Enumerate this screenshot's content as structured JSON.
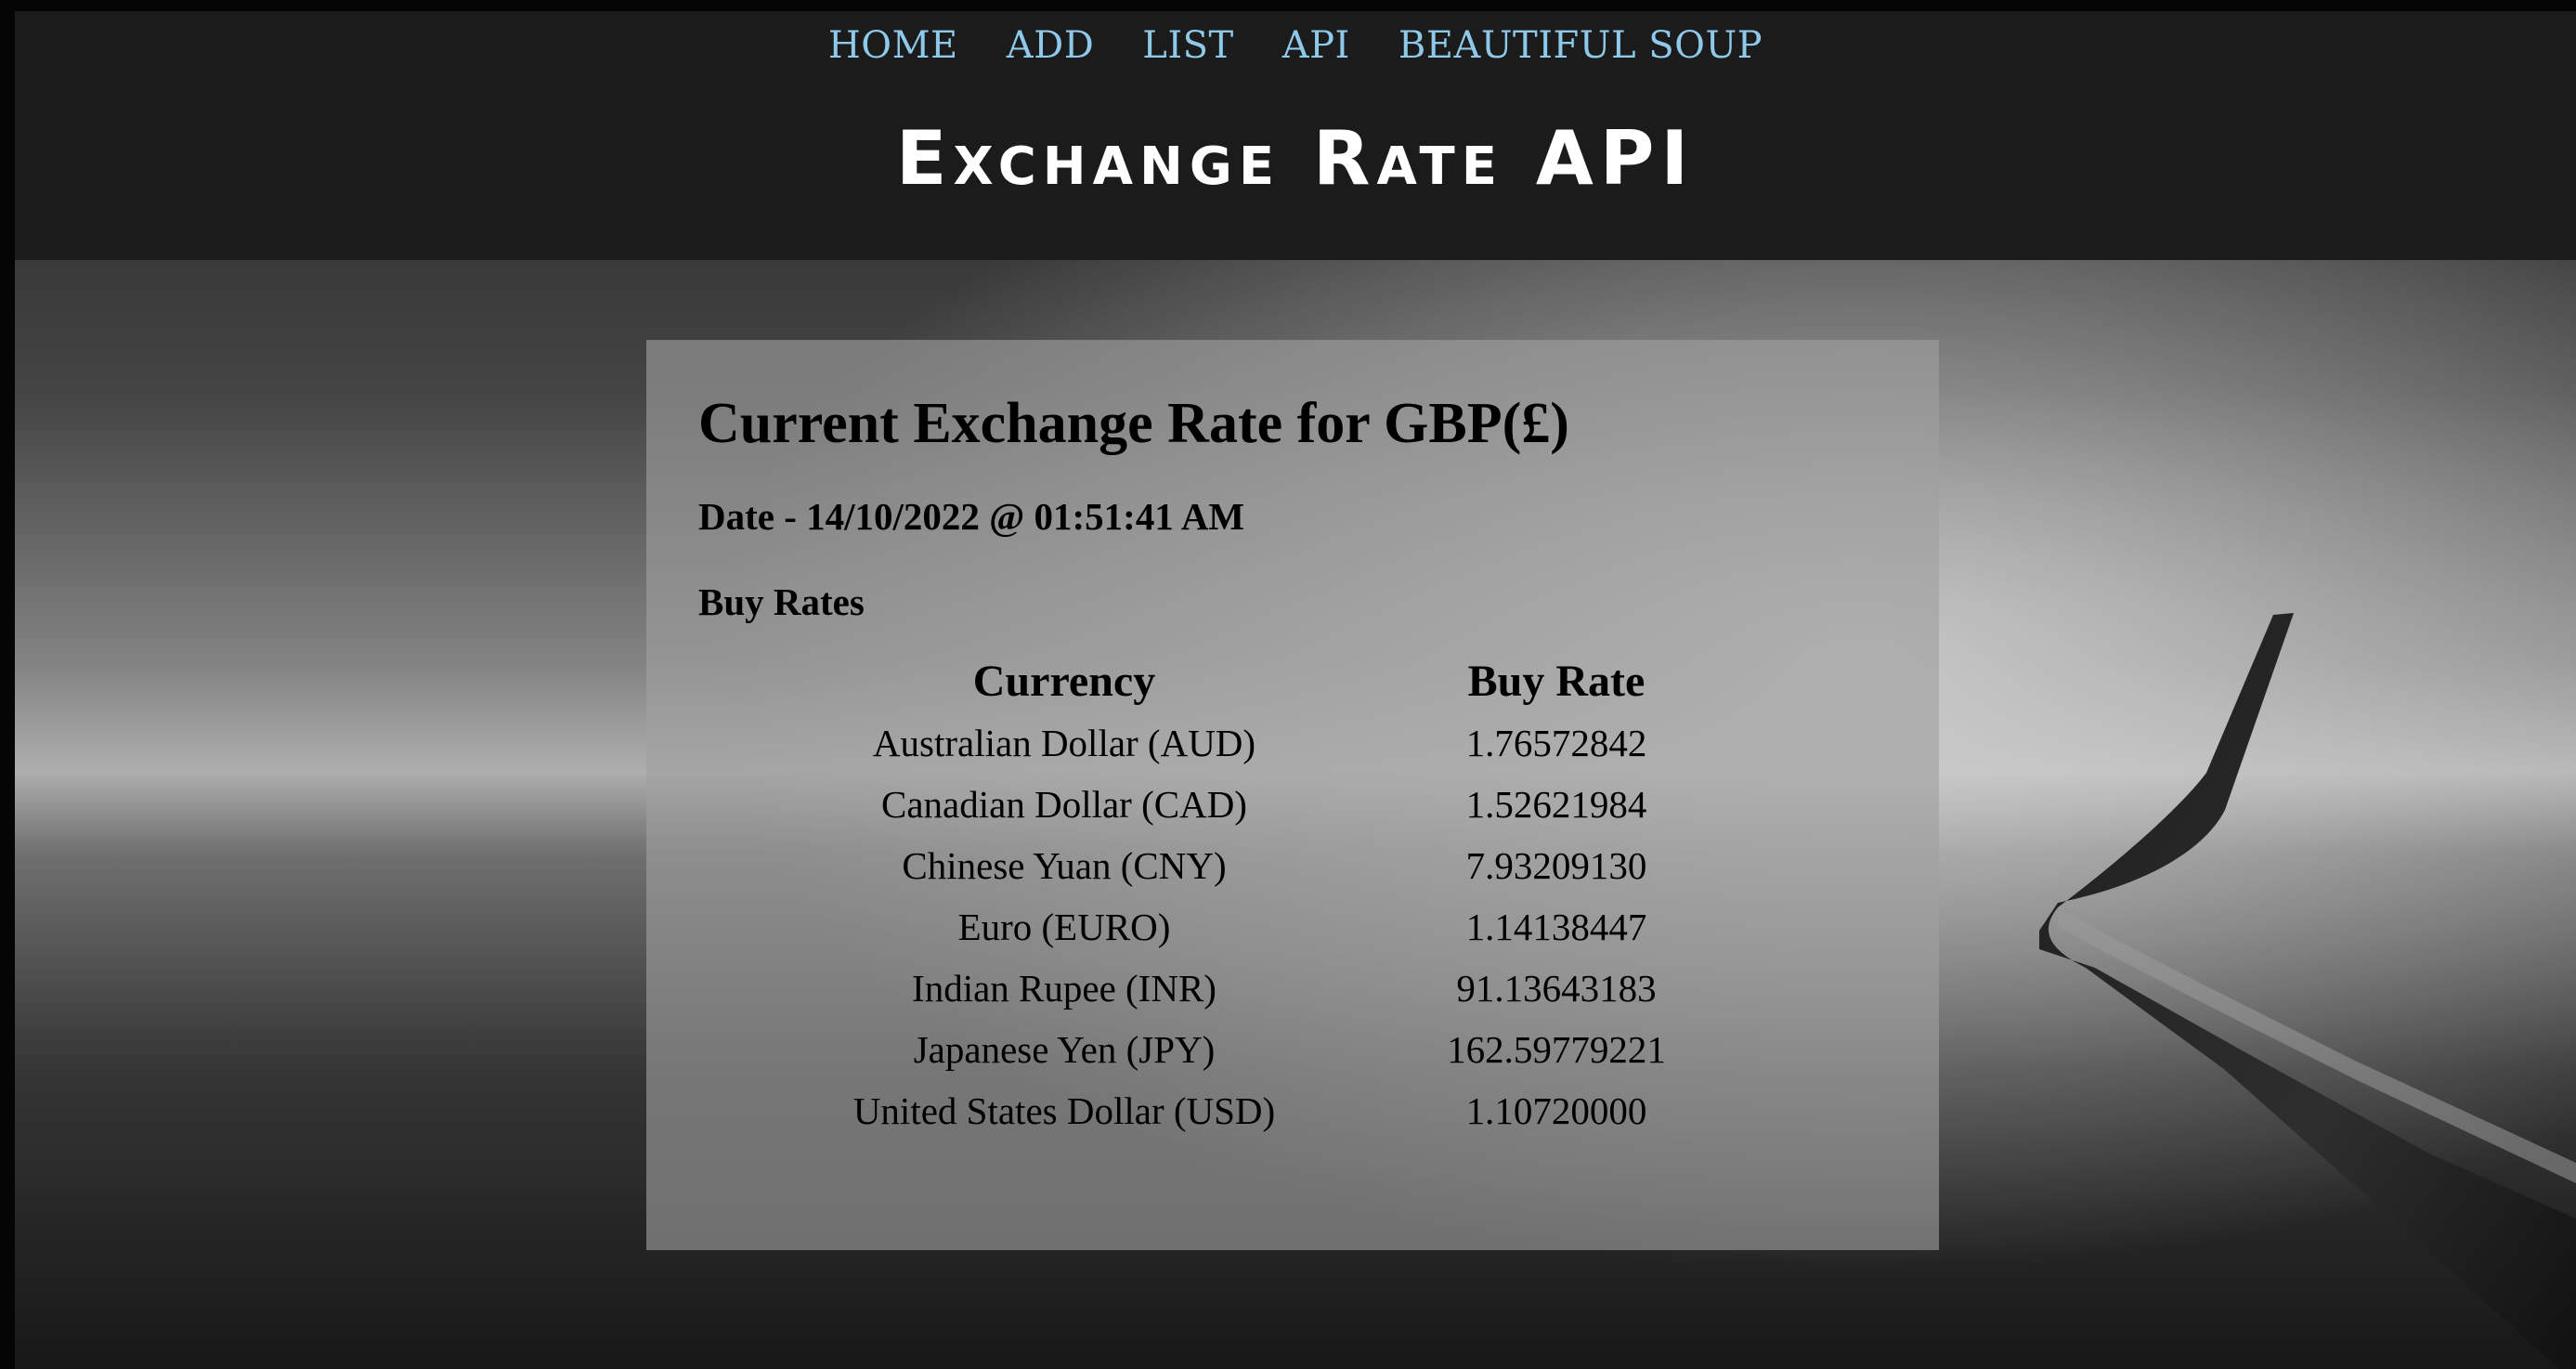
{
  "nav": {
    "items": [
      {
        "label": "HOME"
      },
      {
        "label": "ADD"
      },
      {
        "label": "LIST"
      },
      {
        "label": "API"
      },
      {
        "label": "BEAUTIFUL SOUP"
      }
    ]
  },
  "header": {
    "title": "Exchange Rate API"
  },
  "card": {
    "title": "Current Exchange Rate for GBP(£)",
    "date": "Date - 14/10/2022 @ 01:51:41 AM",
    "subheading": "Buy Rates",
    "table": {
      "headers": [
        "Currency",
        "Buy Rate"
      ],
      "rows": [
        [
          "Australian Dollar (AUD)",
          "1.76572842"
        ],
        [
          "Canadian Dollar (CAD)",
          "1.52621984"
        ],
        [
          "Chinese Yuan (CNY)",
          "7.93209130"
        ],
        [
          "Euro (EURO)",
          "1.14138447"
        ],
        [
          "Indian Rupee (INR)",
          "91.13643183"
        ],
        [
          "Japanese Yen (JPY)",
          "162.59779221"
        ],
        [
          "United States Dollar (USD)",
          "1.10720000"
        ]
      ]
    }
  },
  "colors": {
    "nav_link": "#8fc9ea",
    "header_bg": "#1b1b1b",
    "title": "#ffffff"
  },
  "background": {
    "icon": "airplane-wing-over-clouds"
  }
}
